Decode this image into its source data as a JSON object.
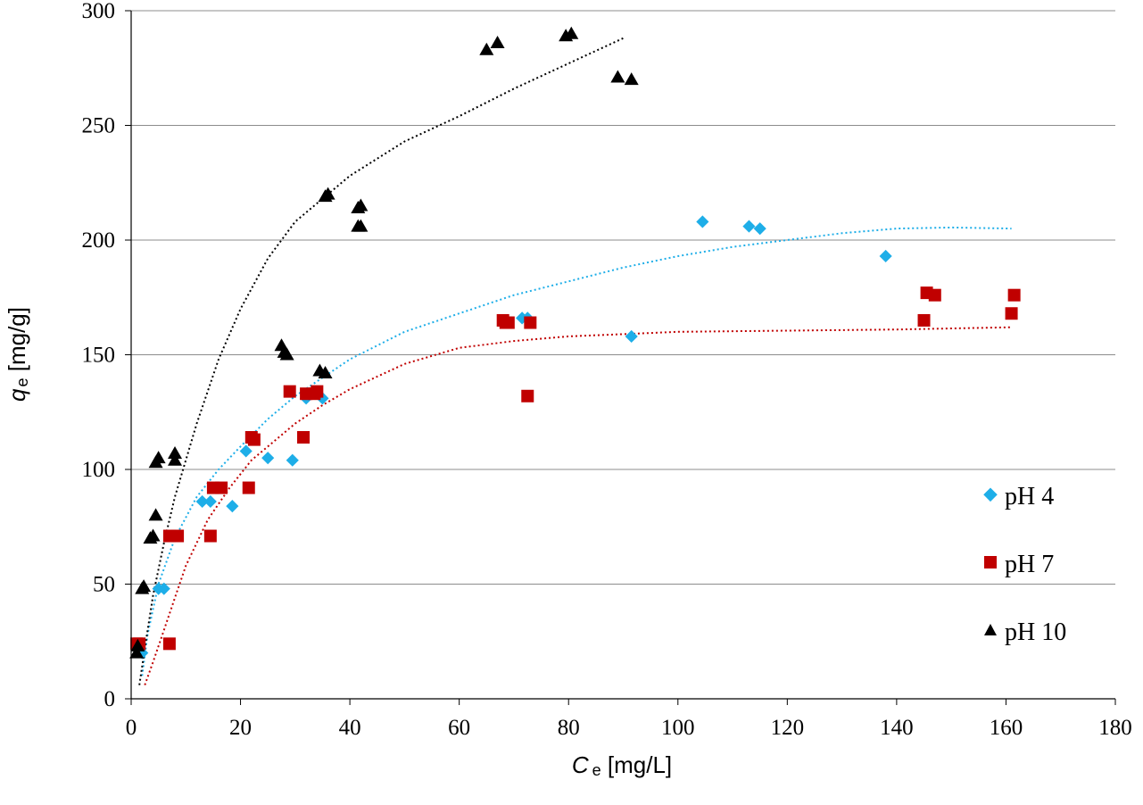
{
  "chart_data": {
    "type": "scatter",
    "xlabel": {
      "symbol": "C",
      "subscript": "e",
      "unit": " [mg/L]"
    },
    "ylabel": {
      "symbol": "q",
      "subscript": "e",
      "unit": " [mg/g]"
    },
    "xlim": [
      0,
      180
    ],
    "ylim": [
      0,
      300
    ],
    "xticks": [
      0,
      20,
      40,
      60,
      80,
      100,
      120,
      140,
      160,
      180
    ],
    "yticks": [
      0,
      50,
      100,
      150,
      200,
      250,
      300
    ],
    "grid": "horizontal",
    "legend_position": "right-bottom",
    "series": [
      {
        "name": "pH 4",
        "color": "#1EAEE8",
        "marker": "diamond",
        "points": [
          [
            2,
            20
          ],
          [
            1.5,
            22
          ],
          [
            5,
            48
          ],
          [
            6,
            48
          ],
          [
            13,
            86
          ],
          [
            14.5,
            86
          ],
          [
            18.5,
            84
          ],
          [
            21,
            108
          ],
          [
            25,
            105
          ],
          [
            29.5,
            104
          ],
          [
            32,
            131
          ],
          [
            35,
            131
          ],
          [
            71.5,
            166
          ],
          [
            72.5,
            166
          ],
          [
            91.5,
            158
          ],
          [
            104.5,
            208
          ],
          [
            113,
            206
          ],
          [
            115,
            205
          ],
          [
            138,
            193
          ]
        ],
        "fit": [
          [
            2,
            10
          ],
          [
            3,
            28
          ],
          [
            5,
            50
          ],
          [
            8,
            70
          ],
          [
            12,
            88
          ],
          [
            16,
            100
          ],
          [
            20,
            110
          ],
          [
            25,
            122
          ],
          [
            30,
            132
          ],
          [
            35,
            140
          ],
          [
            40,
            148
          ],
          [
            50,
            160
          ],
          [
            60,
            168
          ],
          [
            70,
            176
          ],
          [
            80,
            182
          ],
          [
            90,
            188
          ],
          [
            100,
            193
          ],
          [
            110,
            197
          ],
          [
            120,
            200
          ],
          [
            130,
            203
          ],
          [
            140,
            205
          ],
          [
            150,
            205.5
          ],
          [
            161,
            205
          ]
        ]
      },
      {
        "name": "pH 7",
        "color": "#C00000",
        "marker": "square",
        "points": [
          [
            1,
            24
          ],
          [
            1.5,
            24
          ],
          [
            7,
            24
          ],
          [
            7,
            71
          ],
          [
            8.5,
            71
          ],
          [
            14.5,
            71
          ],
          [
            15,
            92
          ],
          [
            16.5,
            92
          ],
          [
            21.5,
            92
          ],
          [
            22,
            114
          ],
          [
            22.5,
            113
          ],
          [
            29,
            134
          ],
          [
            31.5,
            114
          ],
          [
            32,
            133
          ],
          [
            33.5,
            133
          ],
          [
            34,
            134
          ],
          [
            68,
            165
          ],
          [
            68.5,
            164
          ],
          [
            69,
            164
          ],
          [
            72.5,
            132
          ],
          [
            73,
            164
          ],
          [
            145,
            165
          ],
          [
            145.5,
            177
          ],
          [
            147,
            176
          ],
          [
            161,
            168
          ],
          [
            161.5,
            176
          ]
        ],
        "fit": [
          [
            2.5,
            6
          ],
          [
            4,
            16
          ],
          [
            6,
            30
          ],
          [
            8,
            44
          ],
          [
            10,
            58
          ],
          [
            14,
            78
          ],
          [
            18,
            92
          ],
          [
            22,
            104
          ],
          [
            26,
            112
          ],
          [
            30,
            120
          ],
          [
            35,
            128
          ],
          [
            40,
            135
          ],
          [
            50,
            146
          ],
          [
            60,
            153
          ],
          [
            70,
            156
          ],
          [
            80,
            158
          ],
          [
            90,
            159
          ],
          [
            100,
            160
          ],
          [
            120,
            160.5
          ],
          [
            140,
            161
          ],
          [
            161,
            162
          ]
        ]
      },
      {
        "name": "pH 10",
        "color": "#000000",
        "marker": "triangle",
        "points": [
          [
            1,
            20
          ],
          [
            1.2,
            23
          ],
          [
            2,
            48
          ],
          [
            2.3,
            49
          ],
          [
            3.5,
            70
          ],
          [
            4,
            71
          ],
          [
            4.5,
            80
          ],
          [
            4.5,
            103
          ],
          [
            5,
            105
          ],
          [
            8,
            104
          ],
          [
            8,
            107
          ],
          [
            27.5,
            154
          ],
          [
            28,
            151
          ],
          [
            28.5,
            150
          ],
          [
            34.5,
            143
          ],
          [
            35.5,
            142
          ],
          [
            35.5,
            219
          ],
          [
            36,
            220
          ],
          [
            41.5,
            206
          ],
          [
            41.5,
            214
          ],
          [
            42,
            215
          ],
          [
            42,
            206
          ],
          [
            65,
            283
          ],
          [
            67,
            286
          ],
          [
            79.5,
            289
          ],
          [
            80.5,
            290
          ],
          [
            89,
            271
          ],
          [
            91.5,
            270
          ]
        ],
        "fit": [
          [
            1.5,
            6
          ],
          [
            2.5,
            22
          ],
          [
            4,
            45
          ],
          [
            6,
            68
          ],
          [
            8,
            88
          ],
          [
            12,
            120
          ],
          [
            16,
            148
          ],
          [
            20,
            170
          ],
          [
            25,
            192
          ],
          [
            30,
            208
          ],
          [
            40,
            228
          ],
          [
            50,
            243
          ],
          [
            60,
            254
          ],
          [
            70,
            266
          ],
          [
            80,
            277
          ],
          [
            90,
            288
          ]
        ]
      }
    ]
  }
}
